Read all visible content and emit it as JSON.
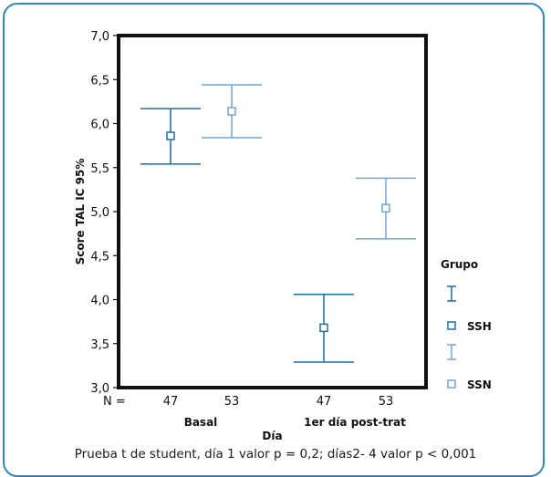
{
  "chart_data": {
    "type": "errorbar",
    "xlabel": "Día",
    "ylabel": "Score TAL IC 95%",
    "ylim": [
      3.0,
      7.0
    ],
    "y_ticks": [
      "3,0",
      "3,5",
      "4,0",
      "4,5",
      "5,0",
      "5,5",
      "6,0",
      "6,5",
      "7,0"
    ],
    "groups": [
      "Basal",
      "1er día post-trat"
    ],
    "n_label": "N =",
    "legend_title": "Grupo",
    "series": [
      {
        "name": "SSH",
        "color": "#1a6fa8",
        "points": [
          {
            "group": "Basal",
            "n": "47",
            "mean": 5.86,
            "low": 5.54,
            "high": 6.17
          },
          {
            "group": "1er día post-trat",
            "n": "47",
            "mean": 3.68,
            "low": 3.29,
            "high": 4.06
          }
        ]
      },
      {
        "name": "SSN",
        "color": "#6fa7d8",
        "points": [
          {
            "group": "Basal",
            "n": "53",
            "mean": 6.14,
            "low": 5.84,
            "high": 6.44
          },
          {
            "group": "1er día post-trat",
            "n": "53",
            "mean": 5.04,
            "low": 4.69,
            "high": 5.38
          }
        ]
      }
    ]
  },
  "caption": "Prueba t de student, día 1 valor p = 0,2; días2- 4 valor p < 0,001"
}
